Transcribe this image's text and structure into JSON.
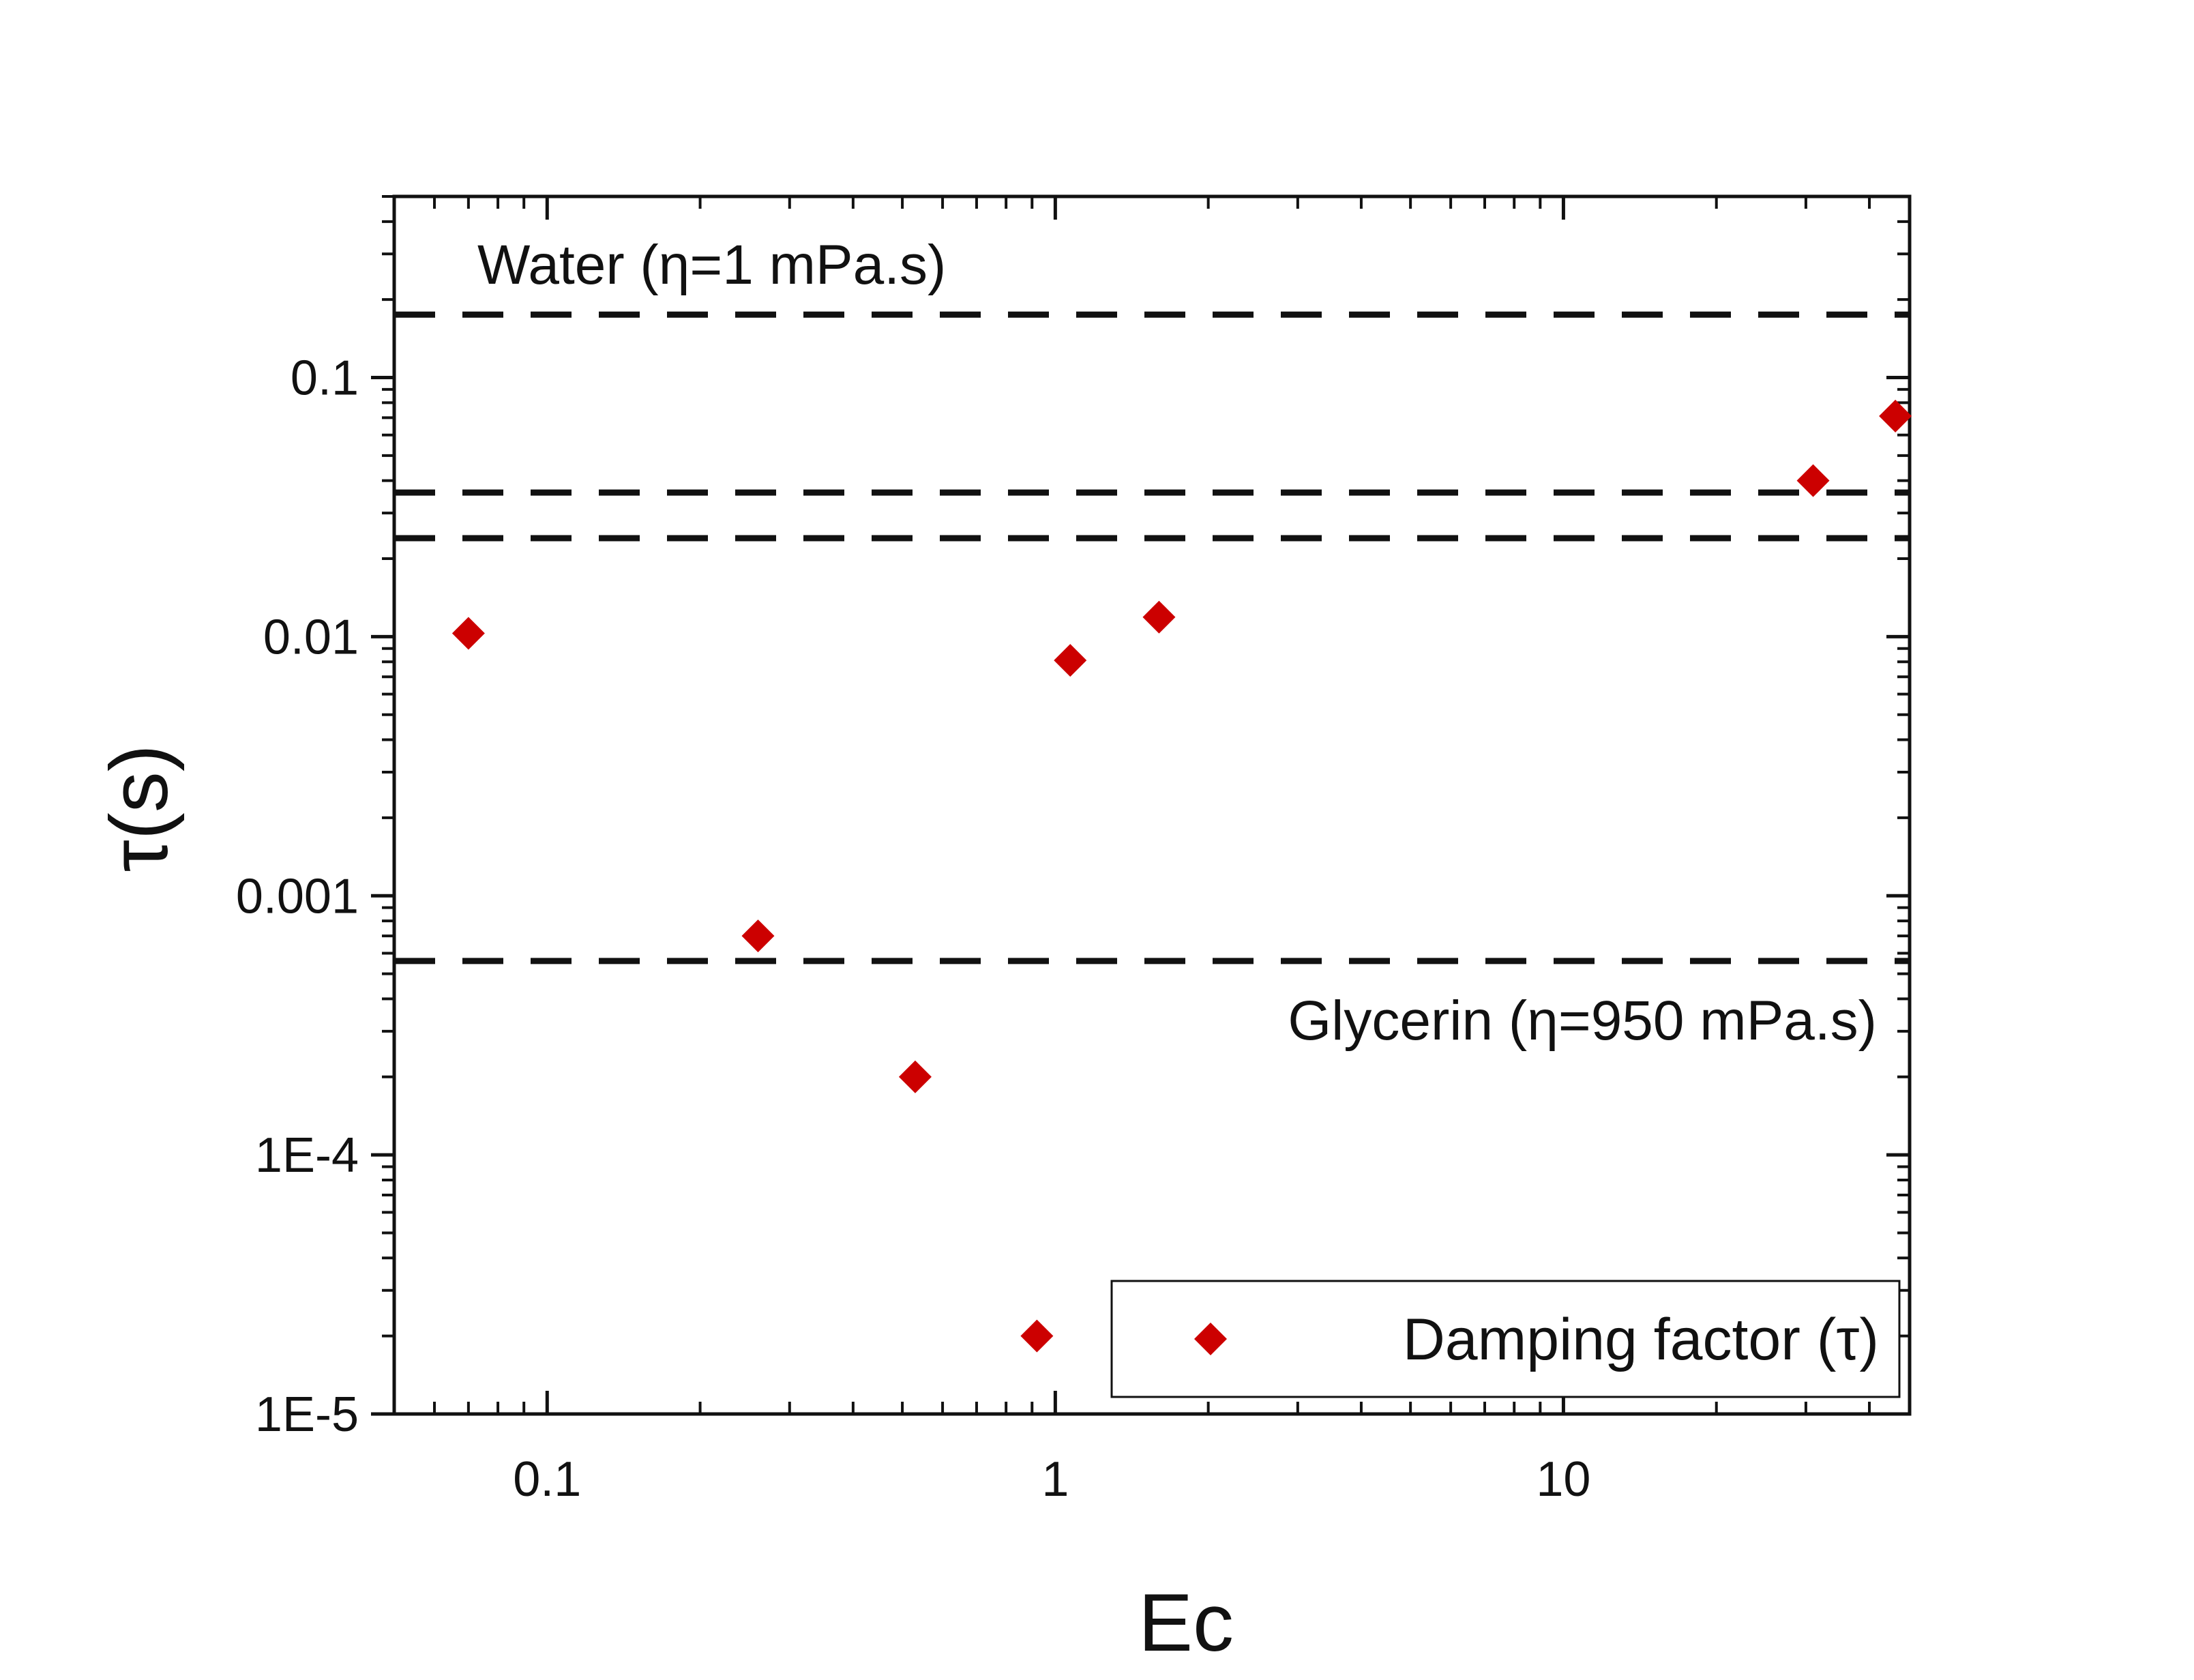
{
  "chart_data": {
    "type": "scatter",
    "title": "",
    "xlabel": "Ec",
    "ylabel": "τ(s)",
    "xscale": "log",
    "yscale": "log",
    "xlim": [
      0.05,
      48
    ],
    "ylim": [
      1e-05,
      0.5
    ],
    "x_tick_labels": [
      {
        "value": 0.1,
        "label": "0.1"
      },
      {
        "value": 1,
        "label": "1"
      },
      {
        "value": 10,
        "label": "10"
      }
    ],
    "y_tick_labels": [
      {
        "value": 0.1,
        "label": "0.1"
      },
      {
        "value": 0.01,
        "label": "0.01"
      },
      {
        "value": 0.001,
        "label": "0.001"
      },
      {
        "value": 0.0001,
        "label": "1E-4"
      },
      {
        "value": 1e-05,
        "label": "1E-5"
      }
    ],
    "series": [
      {
        "name": "Damping factor (τ)",
        "marker": "diamond",
        "color": "#cc0000",
        "points": [
          {
            "x": 0.07,
            "y": 0.0103
          },
          {
            "x": 0.26,
            "y": 0.0007
          },
          {
            "x": 0.53,
            "y": 0.0002
          },
          {
            "x": 0.92,
            "y": 2e-05
          },
          {
            "x": 1.07,
            "y": 0.0081
          },
          {
            "x": 1.6,
            "y": 0.0119
          },
          {
            "x": 31.0,
            "y": 0.04
          },
          {
            "x": 45.0,
            "y": 0.071
          }
        ]
      }
    ],
    "reference_lines": [
      {
        "orientation": "horizontal",
        "y": 0.175,
        "style": "dashed",
        "color": "#111111"
      },
      {
        "orientation": "horizontal",
        "y": 0.036,
        "style": "dashed",
        "color": "#111111"
      },
      {
        "orientation": "horizontal",
        "y": 0.024,
        "style": "dashed",
        "color": "#111111"
      },
      {
        "orientation": "horizontal",
        "y": 0.00056,
        "style": "dashed",
        "color": "#111111"
      }
    ],
    "annotations": [
      {
        "text": "Water (η=1 mPa.s)",
        "anchor_line": 0
      },
      {
        "text": "Glycerin (η=950 mPa.s)",
        "anchor_line": 3
      }
    ],
    "legend": {
      "position": "bottom-right",
      "entries": [
        "Damping factor (τ)"
      ]
    },
    "grid": false
  }
}
